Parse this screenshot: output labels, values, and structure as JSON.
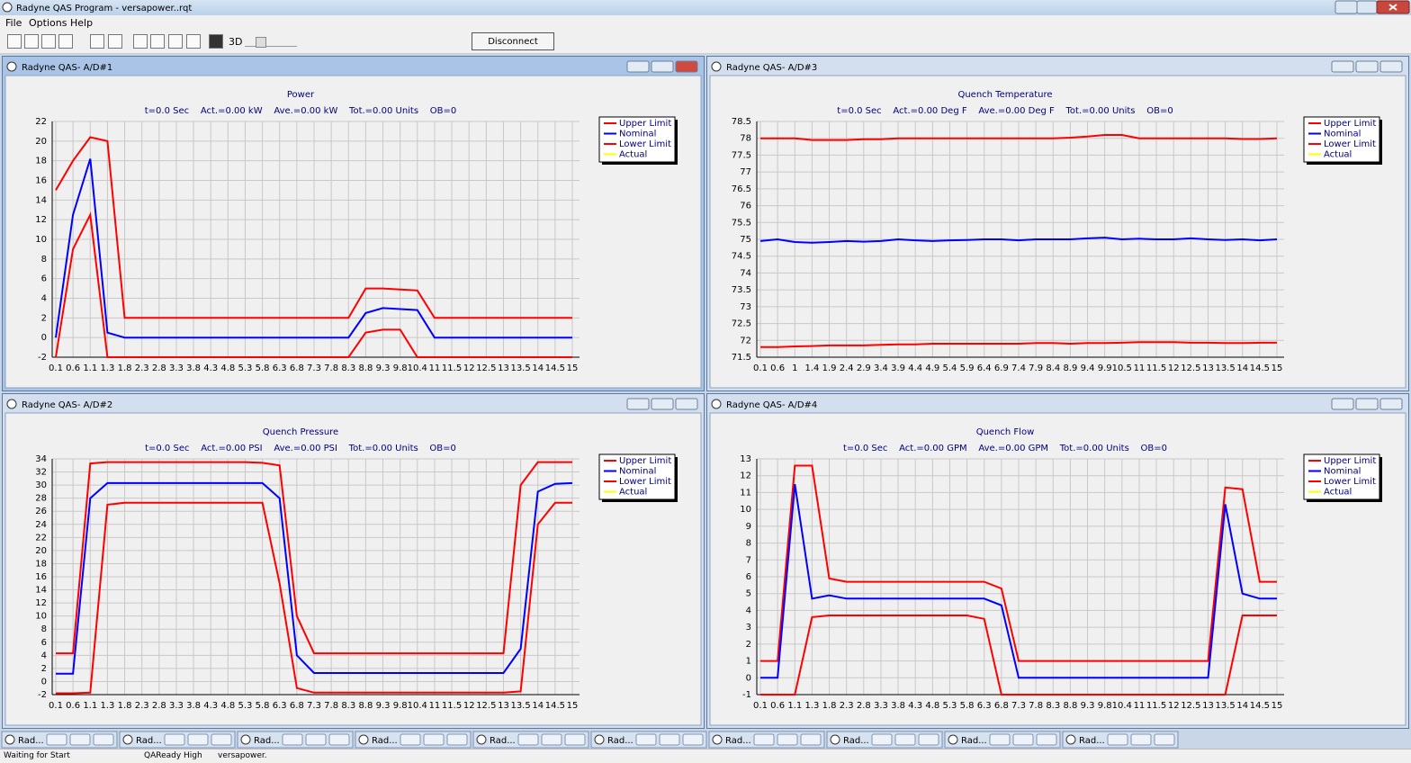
{
  "app": {
    "title": "Radyne QAS Program - versapower..rqt",
    "menu": [
      "File",
      "Options",
      "Help"
    ],
    "toolbar_3d": "3D",
    "button": "Disconnect"
  },
  "windows": [
    {
      "title": "Radyne QAS- A/D#1"
    },
    {
      "title": "Radyne QAS- A/D#3"
    },
    {
      "title": "Radyne QAS- A/D#2"
    },
    {
      "title": "Radyne QAS- A/D#4"
    }
  ],
  "chart_data": [
    {
      "type": "line",
      "title": "Power",
      "subtitle": "t=0.0 Sec    Act.=0.00 kW    Ave.=0.00 kW    Tot.=0.00 Units    OB=0",
      "categories": [
        "0.1",
        "0.6",
        "1.1",
        "1.3",
        "1.8",
        "2.3",
        "2.8",
        "3.3",
        "3.8",
        "4.3",
        "4.8",
        "5.3",
        "5.8",
        "6.3",
        "6.8",
        "7.3",
        "7.8",
        "8.3",
        "8.8",
        "9.3",
        "9.8",
        "10.4",
        "11",
        "11.5",
        "12",
        "12.5",
        "13",
        "13.5",
        "14",
        "14.5",
        "15"
      ],
      "series": [
        {
          "name": "Upper Limit",
          "color": "#ff0000",
          "values": [
            15,
            18,
            20.4,
            20,
            2,
            2,
            2,
            2,
            2,
            2,
            2,
            2,
            2,
            2,
            2,
            2,
            2,
            2,
            5,
            5,
            4.9,
            4.8,
            2,
            2,
            2,
            2,
            2,
            2,
            2,
            2,
            2
          ]
        },
        {
          "name": "Nominal",
          "color": "#0000ff",
          "values": [
            0,
            12.5,
            18.2,
            0.5,
            0,
            0,
            0,
            0,
            0,
            0,
            0,
            0,
            0,
            0,
            0,
            0,
            0,
            0,
            2.5,
            3,
            2.9,
            2.8,
            0,
            0,
            0,
            0,
            0,
            0,
            0,
            0,
            0
          ]
        },
        {
          "name": "Lower Limit",
          "color": "#ff0000",
          "values": [
            -2,
            9,
            12.5,
            -2,
            -2,
            -2,
            -2,
            -2,
            -2,
            -2,
            -2,
            -2,
            -2,
            -2,
            -2,
            -2,
            -2,
            -2,
            0.5,
            0.8,
            0.8,
            -2,
            -2,
            -2,
            -2,
            -2,
            -2,
            -2,
            -2,
            -2,
            -2
          ]
        },
        {
          "name": "Actual",
          "color": "#ffff00",
          "values": [
            null,
            null,
            null,
            null,
            null,
            null,
            null,
            null,
            null,
            null,
            null,
            null,
            null,
            null,
            null,
            null,
            null,
            null,
            null,
            null,
            null,
            null,
            null,
            null,
            null,
            null,
            null,
            null,
            null,
            null,
            null
          ]
        }
      ],
      "ylim": [
        -2,
        22
      ],
      "yticks": [
        -2,
        0,
        2,
        4,
        6,
        8,
        10,
        12,
        14,
        16,
        18,
        20,
        22
      ],
      "grid": true,
      "legend": "upper right"
    },
    {
      "type": "line",
      "title": "Quench Temperature",
      "subtitle": "t=0.0 Sec    Act.=0.00 Deg F    Ave.=0.00 Deg F    Tot.=0.00 Units    OB=0",
      "categories": [
        "0.1",
        "0.6",
        "1",
        "1.4",
        "1.9",
        "2.4",
        "2.9",
        "3.4",
        "3.9",
        "4.4",
        "4.9",
        "5.4",
        "5.9",
        "6.4",
        "6.9",
        "7.4",
        "7.9",
        "8.4",
        "8.9",
        "9.4",
        "9.9",
        "10.5",
        "11",
        "11.5",
        "12",
        "12.5",
        "13",
        "13.5",
        "14",
        "14.5",
        "15"
      ],
      "series": [
        {
          "name": "Upper Limit",
          "color": "#ff0000",
          "values": [
            78,
            78,
            78,
            77.95,
            77.95,
            77.95,
            77.97,
            77.97,
            78,
            78,
            78,
            78,
            78,
            78,
            78,
            78,
            78,
            78,
            78.02,
            78.05,
            78.1,
            78.1,
            78,
            78,
            78,
            78,
            78,
            78,
            77.98,
            77.98,
            78
          ]
        },
        {
          "name": "Nominal",
          "color": "#0000ff",
          "values": [
            74.95,
            75,
            74.92,
            74.9,
            74.92,
            74.95,
            74.93,
            74.95,
            75,
            74.97,
            74.95,
            74.97,
            74.98,
            75,
            75,
            74.97,
            75,
            75,
            75,
            75.03,
            75.05,
            75,
            75.02,
            75,
            75,
            75.03,
            75,
            74.98,
            75,
            74.97,
            75
          ]
        },
        {
          "name": "Lower Limit",
          "color": "#ff0000",
          "values": [
            71.8,
            71.8,
            71.82,
            71.83,
            71.85,
            71.85,
            71.85,
            71.87,
            71.88,
            71.88,
            71.9,
            71.9,
            71.9,
            71.9,
            71.9,
            71.9,
            71.92,
            71.92,
            71.9,
            71.92,
            71.92,
            71.93,
            71.95,
            71.95,
            71.95,
            71.93,
            71.93,
            71.92,
            71.92,
            71.93,
            71.93
          ]
        },
        {
          "name": "Actual",
          "color": "#ffff00",
          "values": [
            null,
            null,
            null,
            null,
            null,
            null,
            null,
            null,
            null,
            null,
            null,
            null,
            null,
            null,
            null,
            null,
            null,
            null,
            null,
            null,
            null,
            null,
            null,
            null,
            null,
            null,
            null,
            null,
            null,
            null,
            null
          ]
        }
      ],
      "ylim": [
        71.5,
        78.5
      ],
      "yticks": [
        71.5,
        72,
        72.5,
        73,
        73.5,
        74,
        74.5,
        75,
        75.5,
        76,
        76.5,
        77,
        77.5,
        78,
        78.5
      ],
      "grid": true,
      "legend": "upper right"
    },
    {
      "type": "line",
      "title": "Quench Pressure",
      "subtitle": "t=0.0 Sec    Act.=0.00 PSI    Ave.=0.00 PSI    Tot.=0.00 Units    OB=0",
      "categories": [
        "0.1",
        "0.6",
        "1.1",
        "1.3",
        "1.8",
        "2.3",
        "2.8",
        "3.3",
        "3.8",
        "4.3",
        "4.8",
        "5.3",
        "5.8",
        "6.3",
        "6.8",
        "7.3",
        "7.8",
        "8.3",
        "8.8",
        "9.3",
        "9.8",
        "10.4",
        "11",
        "11.5",
        "12",
        "12.5",
        "13",
        "13.5",
        "14",
        "14.5",
        "15"
      ],
      "series": [
        {
          "name": "Upper Limit",
          "color": "#ff0000",
          "values": [
            4.3,
            4.3,
            33.3,
            33.5,
            33.5,
            33.5,
            33.5,
            33.5,
            33.5,
            33.5,
            33.5,
            33.5,
            33.4,
            33,
            10,
            4.3,
            4.3,
            4.3,
            4.3,
            4.3,
            4.3,
            4.3,
            4.3,
            4.3,
            4.3,
            4.3,
            4.3,
            30,
            33.5,
            33.5,
            33.5
          ]
        },
        {
          "name": "Nominal",
          "color": "#0000ff",
          "values": [
            1.2,
            1.2,
            28,
            30.3,
            30.3,
            30.3,
            30.3,
            30.3,
            30.3,
            30.3,
            30.3,
            30.3,
            30.3,
            28,
            4,
            1.3,
            1.3,
            1.3,
            1.3,
            1.3,
            1.3,
            1.3,
            1.3,
            1.3,
            1.3,
            1.3,
            1.3,
            5,
            29,
            30.2,
            30.3
          ]
        },
        {
          "name": "Lower Limit",
          "color": "#ff0000",
          "values": [
            -1.8,
            -1.8,
            -1.7,
            27,
            27.3,
            27.3,
            27.3,
            27.3,
            27.3,
            27.3,
            27.3,
            27.3,
            27.3,
            15,
            -1,
            -1.7,
            -1.7,
            -1.7,
            -1.7,
            -1.7,
            -1.7,
            -1.7,
            -1.7,
            -1.7,
            -1.7,
            -1.7,
            -1.7,
            -1.5,
            24,
            27.3,
            27.3
          ]
        },
        {
          "name": "Actual",
          "color": "#ffff00",
          "values": [
            null,
            null,
            null,
            null,
            null,
            null,
            null,
            null,
            null,
            null,
            null,
            null,
            null,
            null,
            null,
            null,
            null,
            null,
            null,
            null,
            null,
            null,
            null,
            null,
            null,
            null,
            null,
            null,
            null,
            null,
            null
          ]
        }
      ],
      "ylim": [
        -2,
        34
      ],
      "yticks": [
        -2,
        0,
        2,
        4,
        6,
        8,
        10,
        12,
        14,
        16,
        18,
        20,
        22,
        24,
        26,
        28,
        30,
        32,
        34
      ],
      "grid": true,
      "legend": "upper right"
    },
    {
      "type": "line",
      "title": "Quench Flow",
      "subtitle": "t=0.0 Sec    Act.=0.00 GPM    Ave.=0.00 GPM    Tot.=0.00 Units    OB=0",
      "categories": [
        "0.1",
        "0.6",
        "1.1",
        "1.3",
        "1.8",
        "2.3",
        "2.8",
        "3.3",
        "3.8",
        "4.3",
        "4.8",
        "5.3",
        "5.8",
        "6.3",
        "6.8",
        "7.3",
        "7.8",
        "8.3",
        "8.8",
        "9.3",
        "9.8",
        "10.4",
        "11",
        "11.5",
        "12",
        "12.5",
        "13",
        "13.5",
        "14",
        "14.5",
        "15"
      ],
      "series": [
        {
          "name": "Upper Limit",
          "color": "#ff0000",
          "values": [
            1,
            1,
            12.6,
            12.6,
            5.9,
            5.7,
            5.7,
            5.7,
            5.7,
            5.7,
            5.7,
            5.7,
            5.7,
            5.7,
            5.3,
            1,
            1,
            1,
            1,
            1,
            1,
            1,
            1,
            1,
            1,
            1,
            1,
            11.3,
            11.2,
            5.7,
            5.7
          ]
        },
        {
          "name": "Nominal",
          "color": "#0000ff",
          "values": [
            0,
            0,
            11.5,
            4.7,
            4.9,
            4.7,
            4.7,
            4.7,
            4.7,
            4.7,
            4.7,
            4.7,
            4.7,
            4.7,
            4.3,
            0,
            0,
            0,
            0,
            0,
            0,
            0,
            0,
            0,
            0,
            0,
            0,
            10.3,
            5,
            4.7,
            4.7
          ]
        },
        {
          "name": "Lower Limit",
          "color": "#ff0000",
          "values": [
            -1,
            -1,
            -1,
            3.6,
            3.7,
            3.7,
            3.7,
            3.7,
            3.7,
            3.7,
            3.7,
            3.7,
            3.7,
            3.5,
            -1,
            -1,
            -1,
            -1,
            -1,
            -1,
            -1,
            -1,
            -1,
            -1,
            -1,
            -1,
            -1,
            -1,
            3.7,
            3.7,
            3.7
          ]
        },
        {
          "name": "Actual",
          "color": "#ffff00",
          "values": [
            null,
            null,
            null,
            null,
            null,
            null,
            null,
            null,
            null,
            null,
            null,
            null,
            null,
            null,
            null,
            null,
            null,
            null,
            null,
            null,
            null,
            null,
            null,
            null,
            null,
            null,
            null,
            null,
            null,
            null,
            null
          ]
        }
      ],
      "ylim": [
        -1,
        13
      ],
      "yticks": [
        -1,
        0,
        1,
        2,
        3,
        4,
        5,
        6,
        7,
        8,
        9,
        10,
        11,
        12,
        13
      ],
      "grid": true,
      "legend": "upper right"
    }
  ],
  "taskbar": [
    "Rad...",
    "Rad...",
    "Rad...",
    "Rad...",
    "Rad...",
    "Rad...",
    "Rad...",
    "Rad...",
    "Rad...",
    "Rad..."
  ],
  "status": [
    "Waiting for Start",
    "QAReady High",
    "versapower."
  ]
}
